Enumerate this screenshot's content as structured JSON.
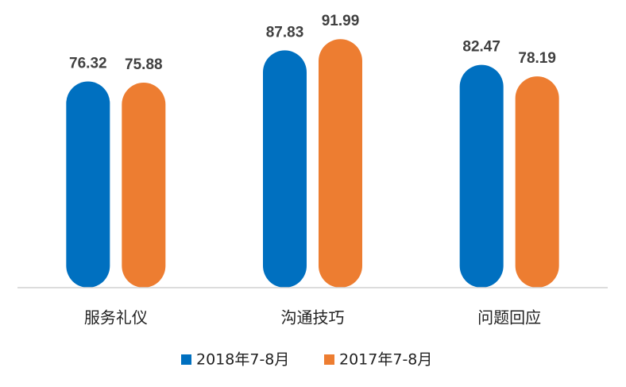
{
  "chart_data": {
    "type": "bar",
    "categories": [
      "服务礼仪",
      "沟通技巧",
      "问题回应"
    ],
    "series": [
      {
        "name": "2018年7-8月",
        "color": "#0070c0",
        "values": [
          76.32,
          87.83,
          82.47
        ]
      },
      {
        "name": "2017年7-8月",
        "color": "#ed7d31",
        "values": [
          75.88,
          91.99,
          78.19
        ]
      }
    ],
    "ylim": [
      0,
      100
    ]
  }
}
